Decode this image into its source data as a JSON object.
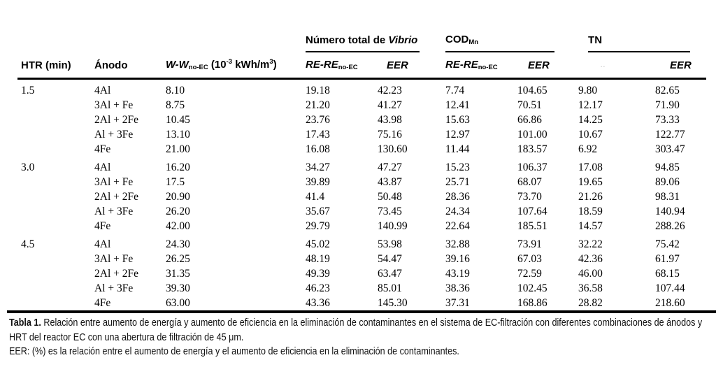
{
  "table": {
    "group_headers": {
      "vibrio_prefix": "Número total de ",
      "vibrio_italic": "Vibrio",
      "cod_base": "COD",
      "cod_sub": "Mn",
      "tn": "TN"
    },
    "column_headers": {
      "htr": "HTR (min)",
      "anodo": "Ánodo",
      "w_italic": "W-W",
      "w_sub": "no-EC",
      "w_u1": " (10",
      "w_u2": "-3",
      "w_u3": " kWh/m",
      "w_u4": "3",
      "w_u5": ")",
      "re_italic": "RE-RE",
      "re_sub": "no-EC",
      "eer": "EER",
      "tn_re_faded_mark": "··"
    },
    "groups": [
      {
        "htr": "1.5",
        "rows": [
          {
            "anodo": "4Al",
            "w": "8.10",
            "vibrio_re": "19.18",
            "vibrio_eer": "42.23",
            "cod_re": "7.74",
            "cod_eer": "104.65",
            "tn_re": "9.80",
            "tn_eer": "82.65"
          },
          {
            "anodo": "3Al + Fe",
            "w": "8.75",
            "vibrio_re": "21.20",
            "vibrio_eer": "41.27",
            "cod_re": "12.41",
            "cod_eer": "70.51",
            "tn_re": "12.17",
            "tn_eer": "71.90"
          },
          {
            "anodo": "2Al + 2Fe",
            "w": "10.45",
            "vibrio_re": "23.76",
            "vibrio_eer": "43.98",
            "cod_re": "15.63",
            "cod_eer": "66.86",
            "tn_re": "14.25",
            "tn_eer": "73.33"
          },
          {
            "anodo": "Al + 3Fe",
            "w": "13.10",
            "vibrio_re": "17.43",
            "vibrio_eer": "75.16",
            "cod_re": "12.97",
            "cod_eer": "101.00",
            "tn_re": "10.67",
            "tn_eer": "122.77"
          },
          {
            "anodo": "4Fe",
            "w": "21.00",
            "vibrio_re": "16.08",
            "vibrio_eer": "130.60",
            "cod_re": "11.44",
            "cod_eer": "183.57",
            "tn_re": "6.92",
            "tn_eer": "303.47"
          }
        ]
      },
      {
        "htr": "3.0",
        "rows": [
          {
            "anodo": "4Al",
            "w": "16.20",
            "vibrio_re": "34.27",
            "vibrio_eer": "47.27",
            "cod_re": "15.23",
            "cod_eer": "106.37",
            "tn_re": "17.08",
            "tn_eer": "94.85"
          },
          {
            "anodo": "3Al + Fe",
            "w": "17.5",
            "vibrio_re": "39.89",
            "vibrio_eer": "43.87",
            "cod_re": "25.71",
            "cod_eer": "68.07",
            "tn_re": "19.65",
            "tn_eer": "89.06"
          },
          {
            "anodo": "2Al + 2Fe",
            "w": "20.90",
            "vibrio_re": "41.4",
            "vibrio_eer": "50.48",
            "cod_re": "28.36",
            "cod_eer": "73.70",
            "tn_re": "21.26",
            "tn_eer": "98.31"
          },
          {
            "anodo": "Al + 3Fe",
            "w": "26.20",
            "vibrio_re": "35.67",
            "vibrio_eer": "73.45",
            "cod_re": "24.34",
            "cod_eer": "107.64",
            "tn_re": "18.59",
            "tn_eer": "140.94"
          },
          {
            "anodo": "4Fe",
            "w": "42.00",
            "vibrio_re": "29.79",
            "vibrio_eer": "140.99",
            "cod_re": "22.64",
            "cod_eer": "185.51",
            "tn_re": "14.57",
            "tn_eer": "288.26"
          }
        ]
      },
      {
        "htr": "4.5",
        "rows": [
          {
            "anodo": "4Al",
            "w": "24.30",
            "vibrio_re": "45.02",
            "vibrio_eer": "53.98",
            "cod_re": "32.88",
            "cod_eer": "73.91",
            "tn_re": "32.22",
            "tn_eer": "75.42"
          },
          {
            "anodo": "3Al + Fe",
            "w": "26.25",
            "vibrio_re": "48.19",
            "vibrio_eer": "54.47",
            "cod_re": "39.16",
            "cod_eer": "67.03",
            "tn_re": "42.36",
            "tn_eer": "61.97"
          },
          {
            "anodo": "2Al + 2Fe",
            "w": "31.35",
            "vibrio_re": "49.39",
            "vibrio_eer": "63.47",
            "cod_re": "43.19",
            "cod_eer": "72.59",
            "tn_re": "46.00",
            "tn_eer": "68.15"
          },
          {
            "anodo": "Al + 3Fe",
            "w": "39.30",
            "vibrio_re": "46.23",
            "vibrio_eer": "85.01",
            "cod_re": "38.36",
            "cod_eer": "102.45",
            "tn_re": "36.58",
            "tn_eer": "107.44"
          },
          {
            "anodo": "4Fe",
            "w": "63.00",
            "vibrio_re": "43.36",
            "vibrio_eer": "145.30",
            "cod_re": "37.31",
            "cod_eer": "168.86",
            "tn_re": "28.82",
            "tn_eer": "218.60"
          }
        ]
      }
    ]
  },
  "caption": {
    "label": "Tabla 1.",
    "text": " Relación entre aumento de energía y aumento de eficiencia en la eliminación de contaminantes en el sistema de EC-filtración con diferentes combinaciones de ánodos y HRT del reactor EC con una abertura de filtración de 45 μm.",
    "note": "EER: (%) es la relación entre el aumento de energía y el aumento de eficiencia en la eliminación de contaminantes."
  }
}
